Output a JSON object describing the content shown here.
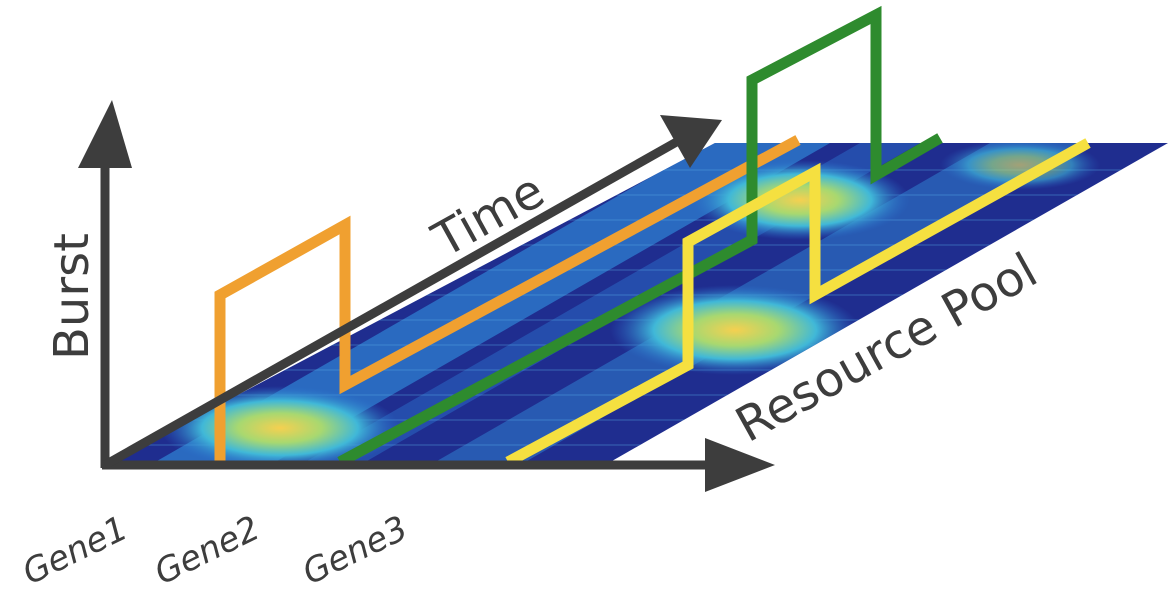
{
  "labels": {
    "burst": "Burst",
    "time": "Time",
    "resource_pool": "Resource Pool",
    "genes": [
      "Gene1",
      "Gene2",
      "Gene3"
    ]
  },
  "colors": {
    "axis": "#3d3d3d",
    "gene1_trace": "#f0a030",
    "gene2_trace": "#2e8b2e",
    "gene3_trace": "#f5e040",
    "plane_base": "#1d2a8c",
    "plane_band": "#3399dd",
    "hotspot": "#f0c850"
  }
}
